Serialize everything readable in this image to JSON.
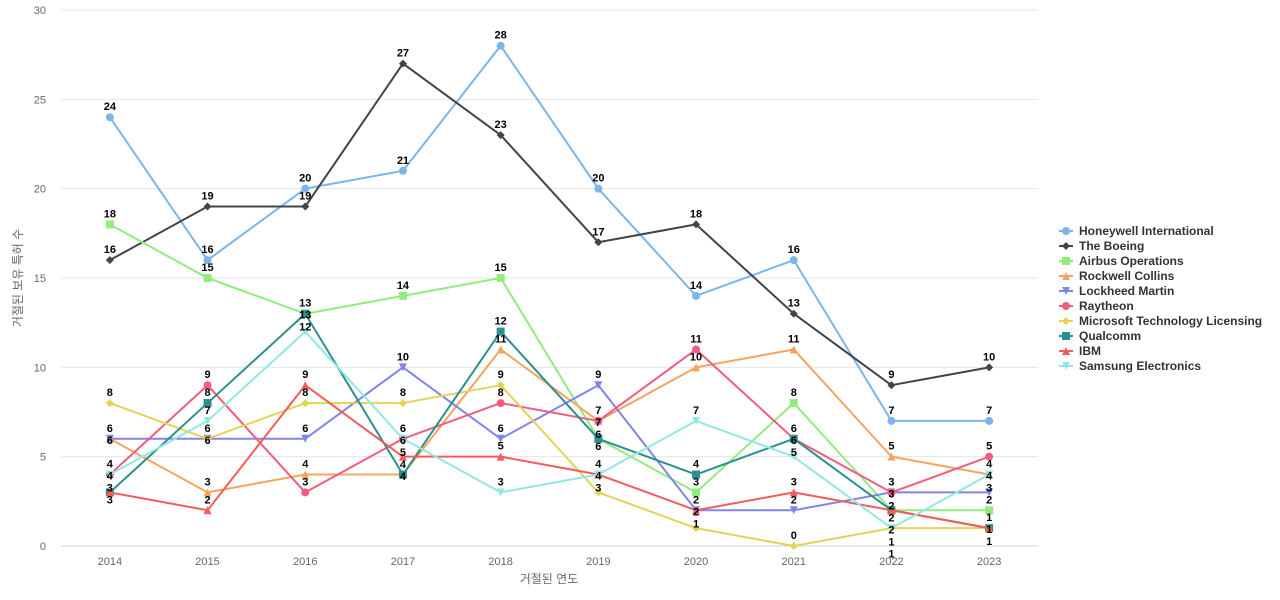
{
  "chart_data": {
    "type": "line",
    "xlabel": "거절된 연도",
    "ylabel": "거절된 보유 특허 수",
    "ylim": [
      0,
      30
    ],
    "yticks": [
      0,
      5,
      10,
      15,
      20,
      25,
      30
    ],
    "categories": [
      "2014",
      "2015",
      "2016",
      "2017",
      "2018",
      "2019",
      "2020",
      "2021",
      "2022",
      "2023"
    ],
    "grid": true,
    "legend_position": "right",
    "series": [
      {
        "name": "Honeywell International",
        "color": "#7cb5ec",
        "marker": "circle",
        "values": [
          24,
          16,
          20,
          21,
          28,
          20,
          14,
          16,
          7,
          7
        ]
      },
      {
        "name": "The Boeing",
        "color": "#434348",
        "marker": "diamond",
        "values": [
          16,
          19,
          19,
          27,
          23,
          17,
          18,
          13,
          9,
          10
        ]
      },
      {
        "name": "Airbus Operations",
        "color": "#90ed7d",
        "marker": "square",
        "values": [
          18,
          15,
          13,
          14,
          15,
          6,
          3,
          8,
          2,
          2
        ]
      },
      {
        "name": "Rockwell Collins",
        "color": "#f7a35c",
        "marker": "triangle",
        "values": [
          6,
          3,
          4,
          4,
          11,
          7,
          10,
          11,
          5,
          4
        ]
      },
      {
        "name": "Lockheed Martin",
        "color": "#8085e9",
        "marker": "triangle-down",
        "values": [
          6,
          6,
          6,
          10,
          6,
          9,
          2,
          2,
          3,
          3
        ]
      },
      {
        "name": "Raytheon",
        "color": "#f15c80",
        "marker": "circle",
        "values": [
          4,
          9,
          3,
          6,
          8,
          7,
          11,
          6,
          3,
          5
        ]
      },
      {
        "name": "Microsoft Technology Licensing",
        "color": "#e4d354",
        "marker": "diamond",
        "values": [
          8,
          6,
          8,
          8,
          9,
          3,
          1,
          0,
          1,
          1
        ]
      },
      {
        "name": "Qualcomm",
        "color": "#2b908f",
        "marker": "square",
        "values": [
          3,
          8,
          13,
          4,
          12,
          6,
          4,
          6,
          2,
          1
        ]
      },
      {
        "name": "IBM",
        "color": "#f45b5b",
        "marker": "triangle",
        "values": [
          3,
          2,
          9,
          5,
          5,
          4,
          2,
          3,
          2,
          1
        ]
      },
      {
        "name": "Samsung Electronics",
        "color": "#91e8e1",
        "marker": "triangle-down",
        "values": [
          4,
          7,
          12,
          6,
          3,
          4,
          7,
          5,
          1,
          4
        ]
      }
    ]
  }
}
